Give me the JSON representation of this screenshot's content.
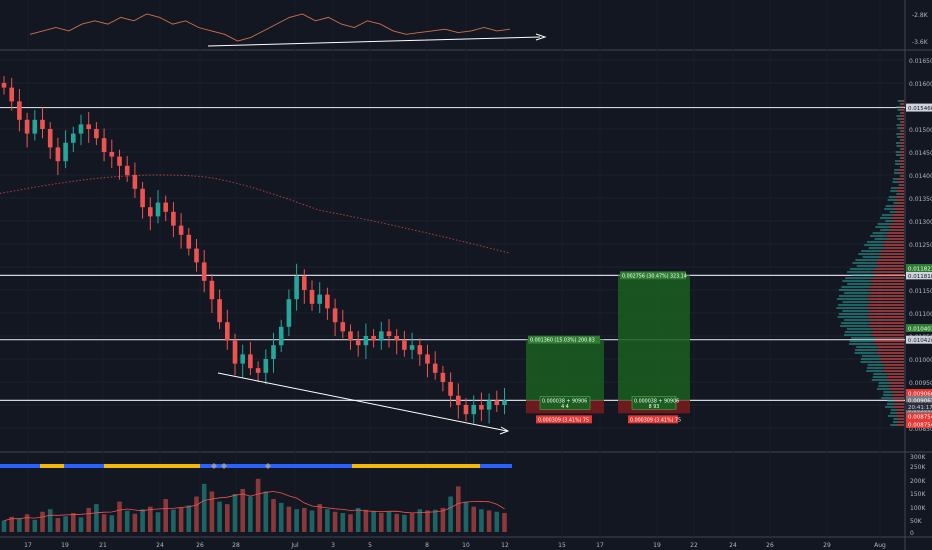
{
  "colors": {
    "background": "#131722",
    "up": "#26a69a",
    "down": "#ef5350",
    "line": "#d1d4dc",
    "rsi": "#d0704a",
    "profit_zone": "#1b5e20",
    "loss_zone": "#7b1c1c",
    "label_green": "#2e7d32",
    "label_red": "#e53935",
    "blue_strip": "#2962ff",
    "yellow_strip": "#f0b90b"
  },
  "chart_data": [
    {
      "type": "line",
      "name": "oscillator-pane",
      "y_ticks": [
        "-2.8K",
        "-3.6K"
      ],
      "values": [
        -3.4,
        -3.3,
        -3.2,
        -3.3,
        -3.1,
        -3.0,
        -3.1,
        -2.9,
        -3.0,
        -2.8,
        -2.9,
        -3.1,
        -3.0,
        -3.2,
        -3.3,
        -3.4,
        -3.6,
        -3.5,
        -3.3,
        -3.1,
        -2.9,
        -2.8,
        -3.0,
        -2.9,
        -3.1,
        -3.2,
        -3.0,
        -3.1,
        -3.3,
        -3.4,
        -3.35,
        -3.3,
        -3.25,
        -3.35,
        -3.3,
        -3.2,
        -3.3,
        -3.25
      ]
    },
    {
      "type": "candlestick",
      "name": "price-pane",
      "y_ticks": [
        "0.016500",
        "0.016000",
        "0.015000",
        "0.014500",
        "0.014000",
        "0.013500",
        "0.013000",
        "0.012500",
        "0.012000",
        "0.011500",
        "0.011000",
        "0.010500",
        "0.010000",
        "0.009500",
        "0.009000",
        "0.008500"
      ],
      "x_ticks": [
        "17",
        "19",
        "21",
        "24",
        "26",
        "28",
        "Jul",
        "3",
        "5",
        "8",
        "10",
        "12",
        "15",
        "17",
        "19",
        "22",
        "24",
        "26",
        "29",
        "Aug"
      ],
      "horizontal_levels": [
        "0.015466",
        "0.011818",
        "0.010420",
        "0.009101"
      ],
      "price_labels": [
        "0.011821",
        "0.010403",
        "0.009060",
        "0.008962",
        "0.008754",
        "0.008754",
        "0.009063",
        "0.009063"
      ],
      "current_price_timer": "20:41:17",
      "long_positions": [
        {
          "target": "0.001360 (15.03%) 200.83",
          "entry": "0.000038 + 90906",
          "entry_sub": "4 4",
          "stop": "0.000309 (3.41%) 75"
        },
        {
          "target": "0.002756 (30.47%) 323.14",
          "entry": "0.000038 + 90906",
          "entry_sub": "8 93",
          "stop": "0.000309 (3.41%) 75"
        }
      ],
      "closes": [
        0.0159,
        0.0156,
        0.0152,
        0.0149,
        0.0152,
        0.015,
        0.0146,
        0.0143,
        0.0147,
        0.0149,
        0.0151,
        0.015,
        0.0148,
        0.0145,
        0.0144,
        0.0142,
        0.014,
        0.0137,
        0.0133,
        0.0131,
        0.0134,
        0.0132,
        0.0129,
        0.0127,
        0.0124,
        0.0121,
        0.0117,
        0.0113,
        0.0108,
        0.0104,
        0.0099,
        0.0101,
        0.0098,
        0.0097,
        0.01,
        0.0103,
        0.0107,
        0.0113,
        0.0118,
        0.0115,
        0.0112,
        0.0114,
        0.0111,
        0.0108,
        0.0106,
        0.0104,
        0.0103,
        0.0105,
        0.0104,
        0.0106,
        0.0105,
        0.0104,
        0.0102,
        0.0103,
        0.0101,
        0.0099,
        0.0097,
        0.0095,
        0.0092,
        0.009,
        0.0088,
        0.009,
        0.0089,
        0.0091,
        0.009,
        0.0091
      ]
    },
    {
      "type": "bar",
      "name": "volume-pane",
      "y_ticks": [
        "300K",
        "250K",
        "200K",
        "150K",
        "100K",
        "50K",
        "0"
      ],
      "values": [
        45,
        60,
        52,
        70,
        48,
        80,
        90,
        55,
        62,
        75,
        58,
        95,
        110,
        70,
        66,
        120,
        84,
        72,
        90,
        100,
        78,
        130,
        88,
        96,
        105,
        140,
        190,
        160,
        120,
        110,
        150,
        170,
        140,
        210,
        160,
        130,
        115,
        100,
        90,
        95,
        85,
        110,
        90,
        80,
        75,
        70,
        95,
        88,
        82,
        76,
        80,
        72,
        68,
        74,
        90,
        85,
        88,
        95,
        140,
        180,
        120,
        100,
        90,
        85,
        80,
        75
      ]
    }
  ]
}
